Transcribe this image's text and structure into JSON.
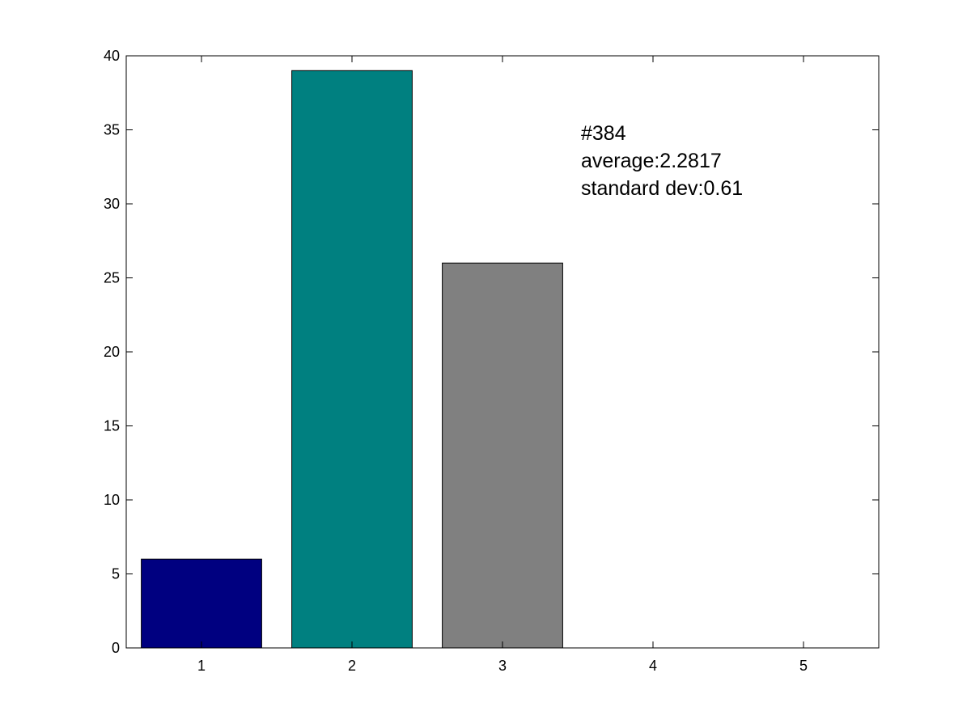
{
  "chart_data": {
    "type": "bar",
    "categories": [
      "1",
      "2",
      "3",
      "4",
      "5"
    ],
    "values": [
      6,
      39,
      26,
      0,
      0
    ],
    "bar_colors": [
      "#000080",
      "#008080",
      "#808080",
      "#808080",
      "#808080"
    ],
    "edge_color": "#000000",
    "title": "",
    "xlabel": "",
    "ylabel": "",
    "xlim": [
      0.5,
      5.5
    ],
    "ylim": [
      0,
      40
    ],
    "y_ticks": [
      0,
      5,
      10,
      15,
      20,
      25,
      30,
      35,
      40
    ],
    "grid": false,
    "legend": null,
    "annotation": {
      "lines": [
        "#384",
        "average:2.2817",
        "standard dev:0.61"
      ]
    }
  }
}
